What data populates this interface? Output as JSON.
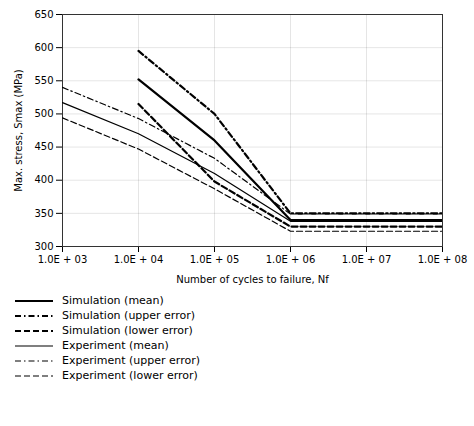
{
  "chart_data": {
    "type": "line",
    "xlabel": "Number of cycles to failure, Nf",
    "ylabel": "Max. stress, Smax (MPa)",
    "log": "x",
    "xlim": [
      1000,
      100000000
    ],
    "xticks": [
      {
        "value": 1000,
        "label": "1.0E + 03"
      },
      {
        "value": 10000,
        "label": "1.0E + 04"
      },
      {
        "value": 100000,
        "label": "1.0E + 05"
      },
      {
        "value": 1000000,
        "label": "1.0E + 06"
      },
      {
        "value": 10000000,
        "label": "1.0E + 07"
      },
      {
        "value": 100000000,
        "label": "1.0E + 08"
      }
    ],
    "ylim": [
      300,
      650
    ],
    "yticks": [
      300,
      350,
      400,
      450,
      500,
      550,
      600,
      650
    ],
    "grid": true,
    "legend": "bottom",
    "series": [
      {
        "name": "Simulation (mean)",
        "color": "#000000",
        "line_style": "solid",
        "x": [
          10000,
          100000,
          1000000,
          10000000,
          100000000
        ],
        "values": [
          552,
          460,
          340,
          340,
          340
        ]
      },
      {
        "name": "Simulation (upper error)",
        "color": "#000000",
        "line_style": "dashdot",
        "x": [
          10000,
          100000,
          1000000,
          10000000,
          100000000
        ],
        "values": [
          595,
          500,
          350,
          350,
          350
        ]
      },
      {
        "name": "Simulation (lower error)",
        "color": "#000000",
        "line_style": "dashed",
        "x": [
          10000,
          100000,
          1000000,
          10000000,
          100000000
        ],
        "values": [
          515,
          398,
          330,
          330,
          330
        ]
      },
      {
        "name": "Experiment (mean)",
        "color": "#000000",
        "line_style": "solid",
        "x": [
          1000,
          10000,
          100000,
          1000000,
          10000000,
          100000000
        ],
        "values": [
          517,
          470,
          410,
          338,
          338,
          338
        ]
      },
      {
        "name": "Experiment (upper error)",
        "color": "#000000",
        "line_style": "dashdot",
        "x": [
          1000,
          10000,
          100000,
          1000000,
          10000000,
          100000000
        ],
        "values": [
          540,
          493,
          433,
          349,
          349,
          349
        ]
      },
      {
        "name": "Experiment (lower error)",
        "color": "#000000",
        "line_style": "dashed",
        "x": [
          1000,
          10000,
          100000,
          1000000,
          10000000,
          100000000
        ],
        "values": [
          494,
          447,
          387,
          323,
          323,
          323
        ]
      }
    ]
  }
}
